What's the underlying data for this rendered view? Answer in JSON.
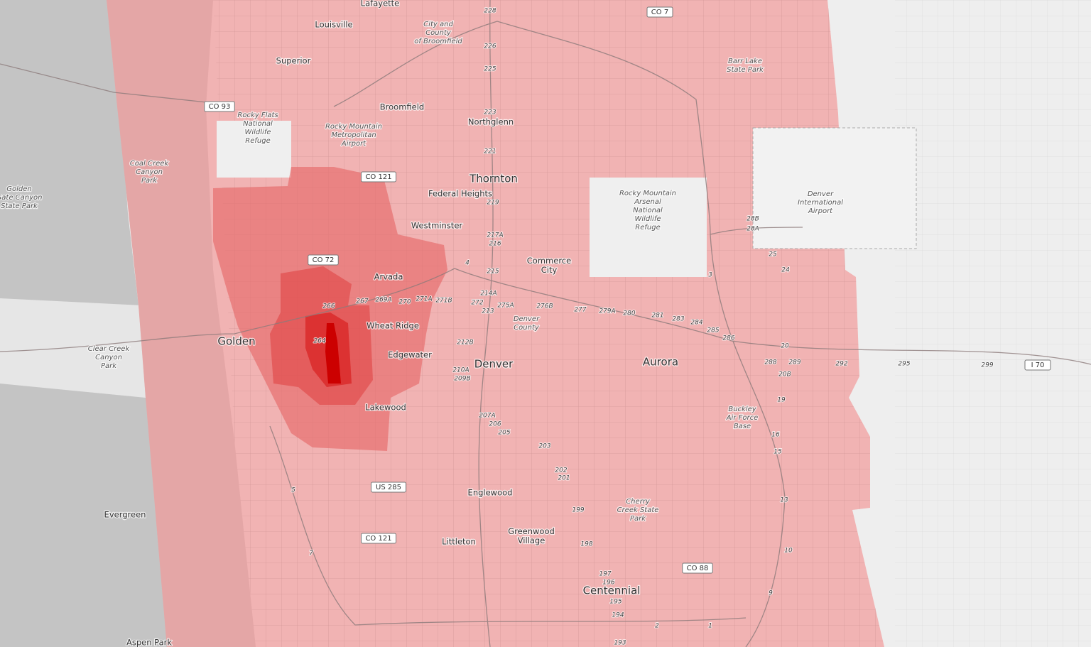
{
  "places": [
    {
      "lines": [
        "Lafayette"
      ]
    },
    {
      "lines": [
        "Louisville"
      ]
    },
    {
      "lines": [
        "Superior"
      ]
    },
    {
      "lines": [
        "Broomfield"
      ]
    },
    {
      "lines": [
        "Northglenn"
      ]
    },
    {
      "lines": [
        "Thornton"
      ]
    },
    {
      "lines": [
        "Federal Heights"
      ]
    },
    {
      "lines": [
        "Westminster"
      ]
    },
    {
      "lines": [
        "Arvada"
      ]
    },
    {
      "lines": [
        "Commerce",
        "City"
      ]
    },
    {
      "lines": [
        "Wheat Ridge"
      ]
    },
    {
      "lines": [
        "Golden"
      ]
    },
    {
      "lines": [
        "Edgewater"
      ]
    },
    {
      "lines": [
        "Denver"
      ]
    },
    {
      "lines": [
        "Aurora"
      ]
    },
    {
      "lines": [
        "Lakewood"
      ]
    },
    {
      "lines": [
        "Englewood"
      ]
    },
    {
      "lines": [
        "Greenwood",
        "Village"
      ]
    },
    {
      "lines": [
        "Littleton"
      ]
    },
    {
      "lines": [
        "Centennial"
      ]
    },
    {
      "lines": [
        "Evergreen"
      ]
    },
    {
      "lines": [
        "Aspen Park"
      ]
    }
  ],
  "parks": [
    {
      "lines": [
        "Rocky Flats",
        "National",
        "Wildlife",
        "Refuge"
      ]
    },
    {
      "lines": [
        "Rocky Mountain",
        "Metropolitan",
        "Airport"
      ]
    },
    {
      "lines": [
        "Coal Creek",
        "Canyon",
        "Park"
      ]
    },
    {
      "lines": [
        "Golden",
        "Gate Canyon",
        "State Park"
      ]
    },
    {
      "lines": [
        "Clear Creek",
        "Canyon",
        "Park"
      ]
    },
    {
      "lines": [
        "Rocky Mountain",
        "Arsenal",
        "National",
        "Wildlife",
        "Refuge"
      ]
    },
    {
      "lines": [
        "Denver",
        "International",
        "Airport"
      ]
    },
    {
      "lines": [
        "Barr Lake",
        "State Park"
      ]
    },
    {
      "lines": [
        "Buckley",
        "Air Force",
        "Base"
      ]
    },
    {
      "lines": [
        "Cherry",
        "Creek State",
        "Park"
      ]
    },
    {
      "lines": [
        "City and",
        "County",
        "of Broomfield"
      ]
    },
    {
      "lines": [
        "Denver",
        "County"
      ]
    }
  ],
  "roads": [
    "CO 7",
    "CO 93",
    "CO 121",
    "CO 72",
    "US 285",
    "CO 121",
    "CO 88",
    "I 70"
  ],
  "exits": [
    "228",
    "226",
    "225",
    "223",
    "221",
    "219",
    "217A",
    "216",
    "215",
    "214A",
    "213",
    "212B",
    "210A",
    "209B",
    "207A",
    "206",
    "205",
    "203",
    "202",
    "201",
    "199",
    "198",
    "197",
    "196",
    "195",
    "194",
    "193",
    "264",
    "266",
    "267",
    "269A",
    "270",
    "271A",
    "271B",
    "272",
    "275A",
    "276B",
    "277",
    "279A",
    "280",
    "281",
    "283",
    "284",
    "285",
    "286",
    "288",
    "289",
    "292",
    "295",
    "299",
    "28B",
    "28A",
    "25",
    "24",
    "20",
    "20B",
    "19",
    "16",
    "15",
    "13",
    "10",
    "9",
    "7",
    "5",
    "4",
    "3",
    "2",
    "1"
  ]
}
